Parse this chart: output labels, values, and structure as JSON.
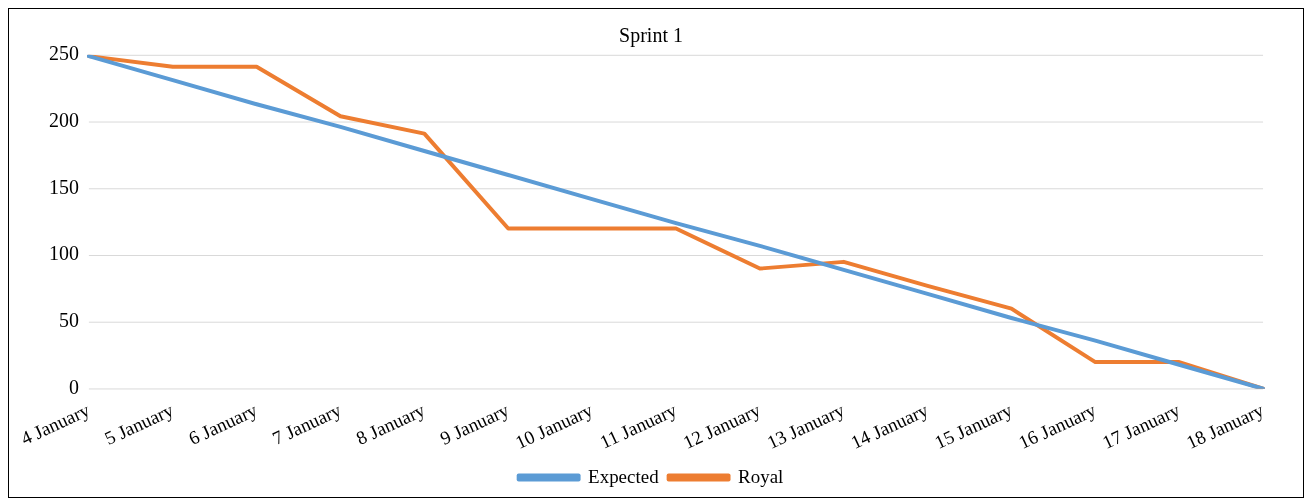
{
  "chart_data": {
    "type": "line",
    "title": "Sprint 1",
    "categories": [
      "4 January",
      "5 January",
      "6 January",
      "7 January",
      "8 January",
      "9 January",
      "10 January",
      "11 January",
      "12 January",
      "13 January",
      "14 January",
      "15 January",
      "16 January",
      "17 January",
      "18 January"
    ],
    "series": [
      {
        "name": "Expected",
        "color": "#5b9bd5",
        "values": [
          249,
          231,
          213,
          196,
          178,
          160,
          142,
          124,
          107,
          89,
          71,
          53,
          36,
          18,
          0
        ]
      },
      {
        "name": "Royal",
        "color": "#ed7d31",
        "values": [
          249,
          241,
          241,
          204,
          191,
          120,
          120,
          120,
          90,
          95,
          77,
          60,
          20,
          20,
          0
        ]
      }
    ],
    "ylim": [
      0,
      250
    ],
    "yticks": [
      0,
      50,
      100,
      150,
      200,
      250
    ],
    "grid": "y",
    "legend": "bottom",
    "marker": "none",
    "line_style": "solid"
  }
}
